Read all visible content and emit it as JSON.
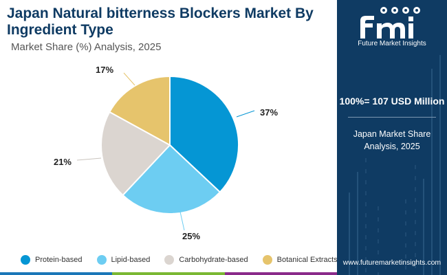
{
  "header": {
    "title": "Japan Natural bitterness Blockers Market By Ingredient Type",
    "subtitle": "Market Share (%) Analysis, 2025"
  },
  "chart_data": {
    "type": "pie",
    "categories": [
      "Protein-based",
      "Lipid-based",
      "Carbohydrate-based",
      "Botanical Extracts"
    ],
    "values": [
      37,
      25,
      21,
      17
    ],
    "labels": [
      "37%",
      "25%",
      "21%",
      "17%"
    ],
    "colors": [
      "#0596d4",
      "#6dcdf2",
      "#dbd5d0",
      "#e6c46c"
    ],
    "legend_position": "bottom"
  },
  "side_panel": {
    "brand": "fmi",
    "brand_tagline": "Future Market Insights",
    "total_label": "100%= 107 USD Million",
    "share_label": "Japan Market Share Analysis, 2025",
    "website": "www.futuremarketinsights.com",
    "background_color": "#0f3b63"
  },
  "bottom_bar_colors": [
    "#1a77b8",
    "#7ab833",
    "#8a2a8a"
  ]
}
